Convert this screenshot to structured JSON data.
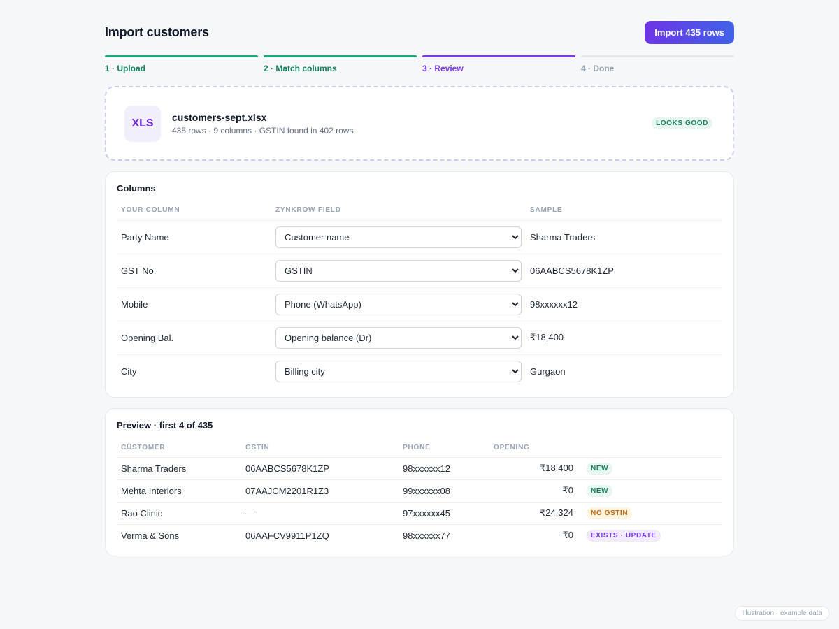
{
  "header": {
    "title": "Import customers",
    "import_button": "Import 435 rows"
  },
  "steps": [
    {
      "label": "1 · Upload",
      "state": "done"
    },
    {
      "label": "2 · Match columns",
      "state": "done"
    },
    {
      "label": "3 · Review",
      "state": "active"
    },
    {
      "label": "4 · Done",
      "state": "pending"
    }
  ],
  "file": {
    "icon_text": "XLS",
    "name": "customers-sept.xlsx",
    "meta": "435 rows · 9 columns · GSTIN found in 402 rows",
    "status": "LOOKS GOOD"
  },
  "columns": {
    "title": "Columns",
    "headers": [
      "YOUR COLUMN",
      "ZYNKROW FIELD",
      "SAMPLE"
    ],
    "rows": [
      {
        "source": "Party Name",
        "field": "Customer name",
        "sample": "Sharma Traders"
      },
      {
        "source": "GST No.",
        "field": "GSTIN",
        "sample": "06AABCS5678K1ZP"
      },
      {
        "source": "Mobile",
        "field": "Phone (WhatsApp)",
        "sample": "98xxxxxx12"
      },
      {
        "source": "Opening Bal.",
        "field": "Opening balance (Dr)",
        "sample": "₹18,400"
      },
      {
        "source": "City",
        "field": "Billing city",
        "sample": "Gurgaon"
      }
    ]
  },
  "preview": {
    "title": "Preview · first 4 of 435",
    "headers": [
      "CUSTOMER",
      "GSTIN",
      "PHONE",
      "OPENING"
    ],
    "rows": [
      {
        "customer": "Sharma Traders",
        "gstin": "06AABCS5678K1ZP",
        "phone": "98xxxxxx12",
        "opening": "₹18,400",
        "status": "NEW",
        "status_color": "green"
      },
      {
        "customer": "Mehta Interiors",
        "gstin": "07AAJCM2201R1Z3",
        "phone": "99xxxxxx08",
        "opening": "₹0",
        "status": "NEW",
        "status_color": "green"
      },
      {
        "customer": "Rao Clinic",
        "gstin": "—",
        "phone": "97xxxxxx45",
        "opening": "₹24,324",
        "status": "NO GSTIN",
        "status_color": "orange"
      },
      {
        "customer": "Verma & Sons",
        "gstin": "06AAFCV9911P1ZQ",
        "phone": "98xxxxxx77",
        "opening": "₹0",
        "status": "EXISTS · UPDATE",
        "status_color": "purple"
      }
    ]
  },
  "footnote": "Illustration · example data",
  "colors": {
    "accent": "#7c3aed",
    "done": "#1aa97a",
    "background": "#f6f7f9"
  }
}
